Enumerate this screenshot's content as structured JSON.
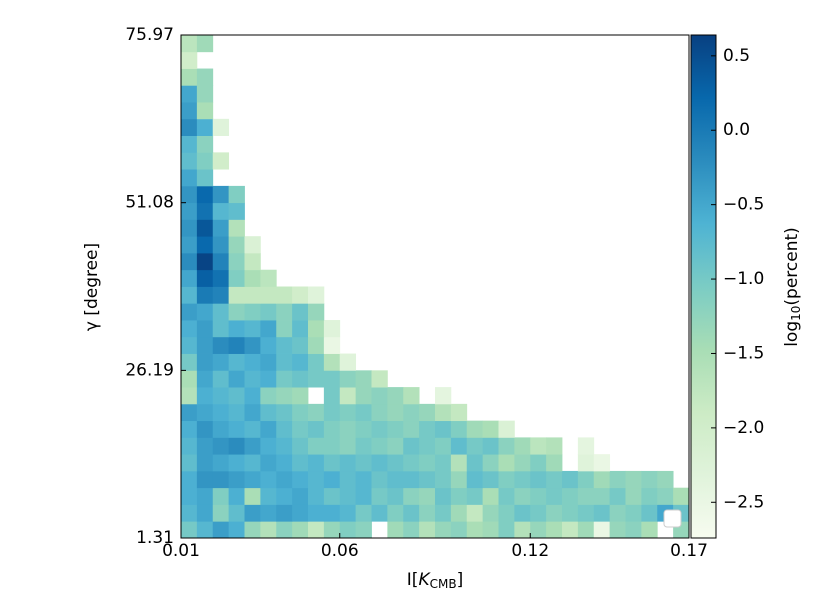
{
  "chart_data": {
    "type": "heatmap",
    "xlabel_parts": [
      "I[",
      "K",
      "CMB",
      "]"
    ],
    "ylabel": "γ [degree]",
    "colorbar_label_parts": [
      "log",
      "10",
      "(percent)"
    ],
    "xlim": [
      0.01,
      0.17
    ],
    "xticks": [
      0.01,
      0.06,
      0.12,
      0.17
    ],
    "ylim": [
      1.31,
      75.97
    ],
    "yticks": [
      1.31,
      26.19,
      51.08,
      75.97
    ],
    "zlim": [
      -2.74,
      0.64
    ],
    "zticks": [
      {
        "value": 0.5,
        "label": "0.5"
      },
      {
        "value": 0,
        "label": "0.0"
      },
      {
        "value": -0.5,
        "label": "−0.5"
      },
      {
        "value": -1,
        "label": "−1.0"
      },
      {
        "value": -1.5,
        "label": "−1.5"
      },
      {
        "value": -2,
        "label": "−2.0"
      },
      {
        "value": -2.5,
        "label": "−2.5"
      }
    ],
    "colormap": [
      "#f7fcf0",
      "#e0f3db",
      "#ccebc5",
      "#a8ddb5",
      "#7bccc4",
      "#4eb3d3",
      "#2b8cbe",
      "#0868ac",
      "#084081"
    ],
    "z": [
      [
        -1.0,
        -0.7,
        -0.4,
        -0.6,
        -1.3,
        -1.6,
        -1.2,
        -1.4,
        -1.8,
        -1.3,
        -1.1,
        -1.2,
        null,
        -1.4,
        -1.2,
        -1.6,
        -1.3,
        -1.2,
        -1.5,
        -1.4,
        -1.1,
        -1.6,
        -1.3,
        -1.5,
        -1.8,
        -1.4,
        -2.5,
        -1.3,
        -1.2,
        -1.5,
        null,
        -1.3
      ],
      [
        -0.7,
        -0.5,
        -1.2,
        -0.8,
        -0.4,
        -0.5,
        -0.4,
        -0.5,
        -0.6,
        -0.6,
        -0.7,
        -1.0,
        -0.8,
        -1.1,
        -0.9,
        -1.2,
        -1.0,
        -1.4,
        -1.8,
        -1.3,
        -1.1,
        -0.9,
        -1.0,
        -1.2,
        -1.1,
        -1.0,
        -0.9,
        -1.2,
        -1.1,
        -0.9,
        -0.5,
        -0.9
      ],
      [
        -0.6,
        -0.5,
        -1.1,
        -0.6,
        -1.5,
        -0.7,
        -0.6,
        -0.5,
        -0.7,
        -0.9,
        -0.8,
        -0.7,
        -1.0,
        -0.9,
        -1.2,
        -1.3,
        -0.9,
        -1.1,
        -1.0,
        -1.5,
        -1.0,
        -1.2,
        -1.1,
        -1.0,
        -1.1,
        -1.2,
        -1.2,
        -1.0,
        -1.3,
        -1.1,
        -1.2,
        -1.5
      ],
      [
        -0.6,
        -0.3,
        -0.3,
        -0.4,
        -0.5,
        -0.6,
        -0.5,
        -0.6,
        -0.7,
        -0.6,
        -0.8,
        -0.7,
        -0.9,
        -0.8,
        -0.8,
        -0.9,
        -1.0,
        -1.3,
        -0.8,
        -0.9,
        -1.1,
        -1.0,
        -0.9,
        -1.0,
        -0.9,
        -1.1,
        -1.4,
        -1.2,
        -1.3,
        -1.2,
        -1.3,
        null
      ],
      [
        -0.8,
        -0.4,
        -0.5,
        -0.6,
        -0.7,
        -0.5,
        -0.6,
        -0.8,
        -0.7,
        -0.9,
        -0.8,
        -0.9,
        -0.8,
        -0.9,
        -1.0,
        -1.1,
        -1.0,
        -1.6,
        -0.9,
        -1.2,
        -1.5,
        -1.3,
        -1.1,
        -1.4,
        null,
        -2.3,
        -2.5,
        null,
        null,
        null,
        null,
        null
      ],
      [
        -0.7,
        -0.4,
        -0.3,
        -0.2,
        -0.4,
        -0.6,
        -0.7,
        -0.9,
        -1.1,
        -1.1,
        -1.2,
        -1.0,
        -1.1,
        -1.2,
        -0.9,
        -1.0,
        -1.1,
        -0.8,
        -1.0,
        -0.9,
        -1.2,
        -1.4,
        -1.7,
        -1.6,
        null,
        -2.4,
        null,
        null,
        null,
        null,
        null,
        null
      ],
      [
        -0.6,
        -0.3,
        -0.5,
        -0.6,
        -0.7,
        -0.5,
        -0.8,
        -1.0,
        -0.9,
        -1.1,
        -1.2,
        -1.1,
        -1.0,
        -1.1,
        -1.2,
        -1.0,
        -0.9,
        -1.1,
        -1.4,
        -1.5,
        -2.2,
        null,
        null,
        null,
        null,
        null,
        null,
        null,
        null,
        null,
        null,
        null
      ],
      [
        -0.4,
        -0.5,
        -0.6,
        -0.7,
        -0.5,
        -0.8,
        -0.9,
        -1.1,
        -1.2,
        -1.0,
        -1.1,
        -1.0,
        -1.2,
        -1.3,
        -1.2,
        -1.3,
        -1.6,
        -1.8,
        null,
        null,
        null,
        null,
        null,
        null,
        null,
        null,
        null,
        null,
        null,
        null,
        null,
        null
      ],
      [
        -1.6,
        -0.6,
        -0.7,
        -0.8,
        -0.6,
        -1.2,
        -1.3,
        -1.4,
        null,
        -1.0,
        -1.8,
        -1.3,
        -1.2,
        -1.3,
        -1.6,
        null,
        -2.4,
        null,
        null,
        null,
        null,
        null,
        null,
        null,
        null,
        null,
        null,
        null,
        null,
        null,
        null,
        null
      ],
      [
        -1.5,
        -0.5,
        -0.8,
        -0.5,
        -0.7,
        -0.6,
        -1.0,
        -0.9,
        -1.0,
        -1.0,
        -1.2,
        -1.3,
        -1.8,
        null,
        null,
        null,
        null,
        null,
        null,
        null,
        null,
        null,
        null,
        null,
        null,
        null,
        null,
        null,
        null,
        null,
        null,
        null
      ],
      [
        -1.0,
        -0.4,
        -0.5,
        -0.7,
        -0.6,
        -0.5,
        -0.8,
        -0.7,
        -1.0,
        -1.6,
        -2.3,
        null,
        null,
        null,
        null,
        null,
        null,
        null,
        null,
        null,
        null,
        null,
        null,
        null,
        null,
        null,
        null,
        null,
        null,
        null,
        null,
        null
      ],
      [
        -0.7,
        -0.4,
        -0.2,
        -0.1,
        -0.3,
        -0.6,
        -0.8,
        -0.9,
        -1.4,
        -2.5,
        null,
        null,
        null,
        null,
        null,
        null,
        null,
        null,
        null,
        null,
        null,
        null,
        null,
        null,
        null,
        null,
        null,
        null,
        null,
        null,
        null,
        null
      ],
      [
        -0.6,
        -0.4,
        -0.8,
        -0.6,
        -0.7,
        -0.5,
        -1.2,
        -0.8,
        -1.5,
        -2.3,
        null,
        null,
        null,
        null,
        null,
        null,
        null,
        null,
        null,
        null,
        null,
        null,
        null,
        null,
        null,
        null,
        null,
        null,
        null,
        null,
        null,
        null
      ],
      [
        -0.4,
        -0.5,
        -0.8,
        -1.2,
        -1.1,
        -1.0,
        -1.2,
        -0.9,
        -1.3,
        null,
        null,
        null,
        null,
        null,
        null,
        null,
        null,
        null,
        null,
        null,
        null,
        null,
        null,
        null,
        null,
        null,
        null,
        null,
        null,
        null,
        null,
        null
      ],
      [
        -0.7,
        0.0,
        -0.1,
        -1.8,
        -1.8,
        -1.8,
        -1.8,
        -2.0,
        -2.3,
        null,
        null,
        null,
        null,
        null,
        null,
        null,
        null,
        null,
        null,
        null,
        null,
        null,
        null,
        null,
        null,
        null,
        null,
        null,
        null,
        null,
        null,
        null
      ],
      [
        -0.5,
        0.3,
        0.1,
        -1.1,
        -1.5,
        -1.7,
        null,
        null,
        null,
        null,
        null,
        null,
        null,
        null,
        null,
        null,
        null,
        null,
        null,
        null,
        null,
        null,
        null,
        null,
        null,
        null,
        null,
        null,
        null,
        null,
        null,
        null
      ],
      [
        -0.2,
        0.6,
        -0.1,
        -1.2,
        -1.8,
        null,
        null,
        null,
        null,
        null,
        null,
        null,
        null,
        null,
        null,
        null,
        null,
        null,
        null,
        null,
        null,
        null,
        null,
        null,
        null,
        null,
        null,
        null,
        null,
        null,
        null,
        null
      ],
      [
        -0.4,
        0.2,
        -0.3,
        -1.3,
        -2.2,
        null,
        null,
        null,
        null,
        null,
        null,
        null,
        null,
        null,
        null,
        null,
        null,
        null,
        null,
        null,
        null,
        null,
        null,
        null,
        null,
        null,
        null,
        null,
        null,
        null,
        null,
        null
      ],
      [
        -0.3,
        0.4,
        -0.4,
        -1.6,
        null,
        null,
        null,
        null,
        null,
        null,
        null,
        null,
        null,
        null,
        null,
        null,
        null,
        null,
        null,
        null,
        null,
        null,
        null,
        null,
        null,
        null,
        null,
        null,
        null,
        null,
        null,
        null
      ],
      [
        -0.4,
        0.1,
        -0.7,
        -0.8,
        null,
        null,
        null,
        null,
        null,
        null,
        null,
        null,
        null,
        null,
        null,
        null,
        null,
        null,
        null,
        null,
        null,
        null,
        null,
        null,
        null,
        null,
        null,
        null,
        null,
        null,
        null,
        null
      ],
      [
        -0.3,
        0.2,
        -0.3,
        -1.1,
        null,
        null,
        null,
        null,
        null,
        null,
        null,
        null,
        null,
        null,
        null,
        null,
        null,
        null,
        null,
        null,
        null,
        null,
        null,
        null,
        null,
        null,
        null,
        null,
        null,
        null,
        null,
        null
      ],
      [
        -0.5,
        -0.9,
        null,
        null,
        null,
        null,
        null,
        null,
        null,
        null,
        null,
        null,
        null,
        null,
        null,
        null,
        null,
        null,
        null,
        null,
        null,
        null,
        null,
        null,
        null,
        null,
        null,
        null,
        null,
        null,
        null,
        null
      ],
      [
        -0.8,
        -1.1,
        -2.0,
        null,
        null,
        null,
        null,
        null,
        null,
        null,
        null,
        null,
        null,
        null,
        null,
        null,
        null,
        null,
        null,
        null,
        null,
        null,
        null,
        null,
        null,
        null,
        null,
        null,
        null,
        null,
        null,
        null
      ],
      [
        -0.7,
        -1.2,
        null,
        null,
        null,
        null,
        null,
        null,
        null,
        null,
        null,
        null,
        null,
        null,
        null,
        null,
        null,
        null,
        null,
        null,
        null,
        null,
        null,
        null,
        null,
        null,
        null,
        null,
        null,
        null,
        null,
        null
      ],
      [
        -0.2,
        -0.6,
        -2.3,
        null,
        null,
        null,
        null,
        null,
        null,
        null,
        null,
        null,
        null,
        null,
        null,
        null,
        null,
        null,
        null,
        null,
        null,
        null,
        null,
        null,
        null,
        null,
        null,
        null,
        null,
        null,
        null,
        null
      ],
      [
        -0.4,
        -1.5,
        null,
        null,
        null,
        null,
        null,
        null,
        null,
        null,
        null,
        null,
        null,
        null,
        null,
        null,
        null,
        null,
        null,
        null,
        null,
        null,
        null,
        null,
        null,
        null,
        null,
        null,
        null,
        null,
        null,
        null
      ],
      [
        -0.5,
        -1.3,
        null,
        null,
        null,
        null,
        null,
        null,
        null,
        null,
        null,
        null,
        null,
        null,
        null,
        null,
        null,
        null,
        null,
        null,
        null,
        null,
        null,
        null,
        null,
        null,
        null,
        null,
        null,
        null,
        null,
        null
      ],
      [
        -1.5,
        -1.3,
        null,
        null,
        null,
        null,
        null,
        null,
        null,
        null,
        null,
        null,
        null,
        null,
        null,
        null,
        null,
        null,
        null,
        null,
        null,
        null,
        null,
        null,
        null,
        null,
        null,
        null,
        null,
        null,
        null,
        null
      ],
      [
        -2.0,
        null,
        null,
        null,
        null,
        null,
        null,
        null,
        null,
        null,
        null,
        null,
        null,
        null,
        null,
        null,
        null,
        null,
        null,
        null,
        null,
        null,
        null,
        null,
        null,
        null,
        null,
        null,
        null,
        null,
        null,
        null
      ],
      [
        -1.7,
        -1.4,
        null,
        null,
        null,
        null,
        null,
        null,
        null,
        null,
        null,
        null,
        null,
        null,
        null,
        null,
        null,
        null,
        null,
        null,
        null,
        null,
        null,
        null,
        null,
        null,
        null,
        null,
        null,
        null,
        null,
        null
      ]
    ]
  }
}
